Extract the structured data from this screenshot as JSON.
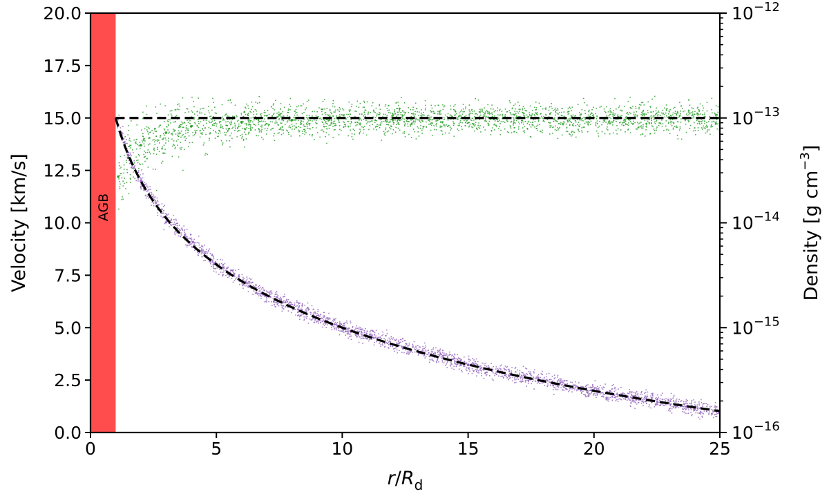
{
  "chart_data": {
    "type": "scatter",
    "xlabel_main": "r",
    "xlabel_div": "/",
    "xlabel_R": "R",
    "xlabel_sub": "d",
    "ylabel": "Velocity [km/s]",
    "y2label_prefix": "Density [g cm",
    "y2label_exp": "−3",
    "y2label_suffix": "]",
    "xlim": [
      0,
      25
    ],
    "ylim": [
      0,
      20
    ],
    "y2lim_log10": [
      -16,
      -12
    ],
    "y2_scale": "log",
    "xticks": [
      "0",
      "5",
      "10",
      "15",
      "20",
      "25"
    ],
    "yticks": [
      "0.0",
      "2.5",
      "5.0",
      "7.5",
      "10.0",
      "12.5",
      "15.0",
      "17.5",
      "20.0"
    ],
    "y2ticks": [
      {
        "base": "10",
        "exp": "−12"
      },
      {
        "base": "10",
        "exp": "−13"
      },
      {
        "base": "10",
        "exp": "−14"
      },
      {
        "base": "10",
        "exp": "−15"
      },
      {
        "base": "10",
        "exp": "−16"
      }
    ],
    "agb_region": {
      "label": "AGB",
      "x_range": [
        0,
        1
      ],
      "color": "#ff4d4d"
    },
    "series": [
      {
        "axis": "left",
        "color": "#2ca02c",
        "values": [
          [
            1.1,
            12.2
          ],
          [
            1.5,
            13.1
          ],
          [
            2,
            13.7
          ],
          [
            3,
            14.3
          ],
          [
            4,
            14.6
          ],
          [
            6,
            14.8
          ],
          [
            8,
            14.9
          ],
          [
            12,
            14.95
          ],
          [
            17,
            15.0
          ],
          [
            25,
            15.0
          ]
        ]
      },
      {
        "axis": "right",
        "color": "#9467bd",
        "values": [
          [
            1,
            1e-13
          ],
          [
            1.5,
            4.4e-14
          ],
          [
            2,
            2.5e-14
          ],
          [
            3,
            1.11e-14
          ],
          [
            5,
            4e-15
          ],
          [
            7,
            2.04e-15
          ],
          [
            10,
            1e-15
          ],
          [
            15,
            4.4e-16
          ],
          [
            20,
            2.5e-16
          ],
          [
            25,
            1.6e-16
          ]
        ]
      }
    ],
    "model_lines": [
      {
        "axis": "left",
        "style": "dashed",
        "color": "#000000",
        "values": [
          [
            1,
            15.0
          ],
          [
            25,
            15.0
          ]
        ]
      },
      {
        "axis": "right",
        "style": "dashed",
        "color": "#000000",
        "law": "rho ∝ r^-2",
        "values": [
          [
            1,
            1e-13
          ],
          [
            25,
            1.6e-16
          ]
        ]
      }
    ]
  }
}
